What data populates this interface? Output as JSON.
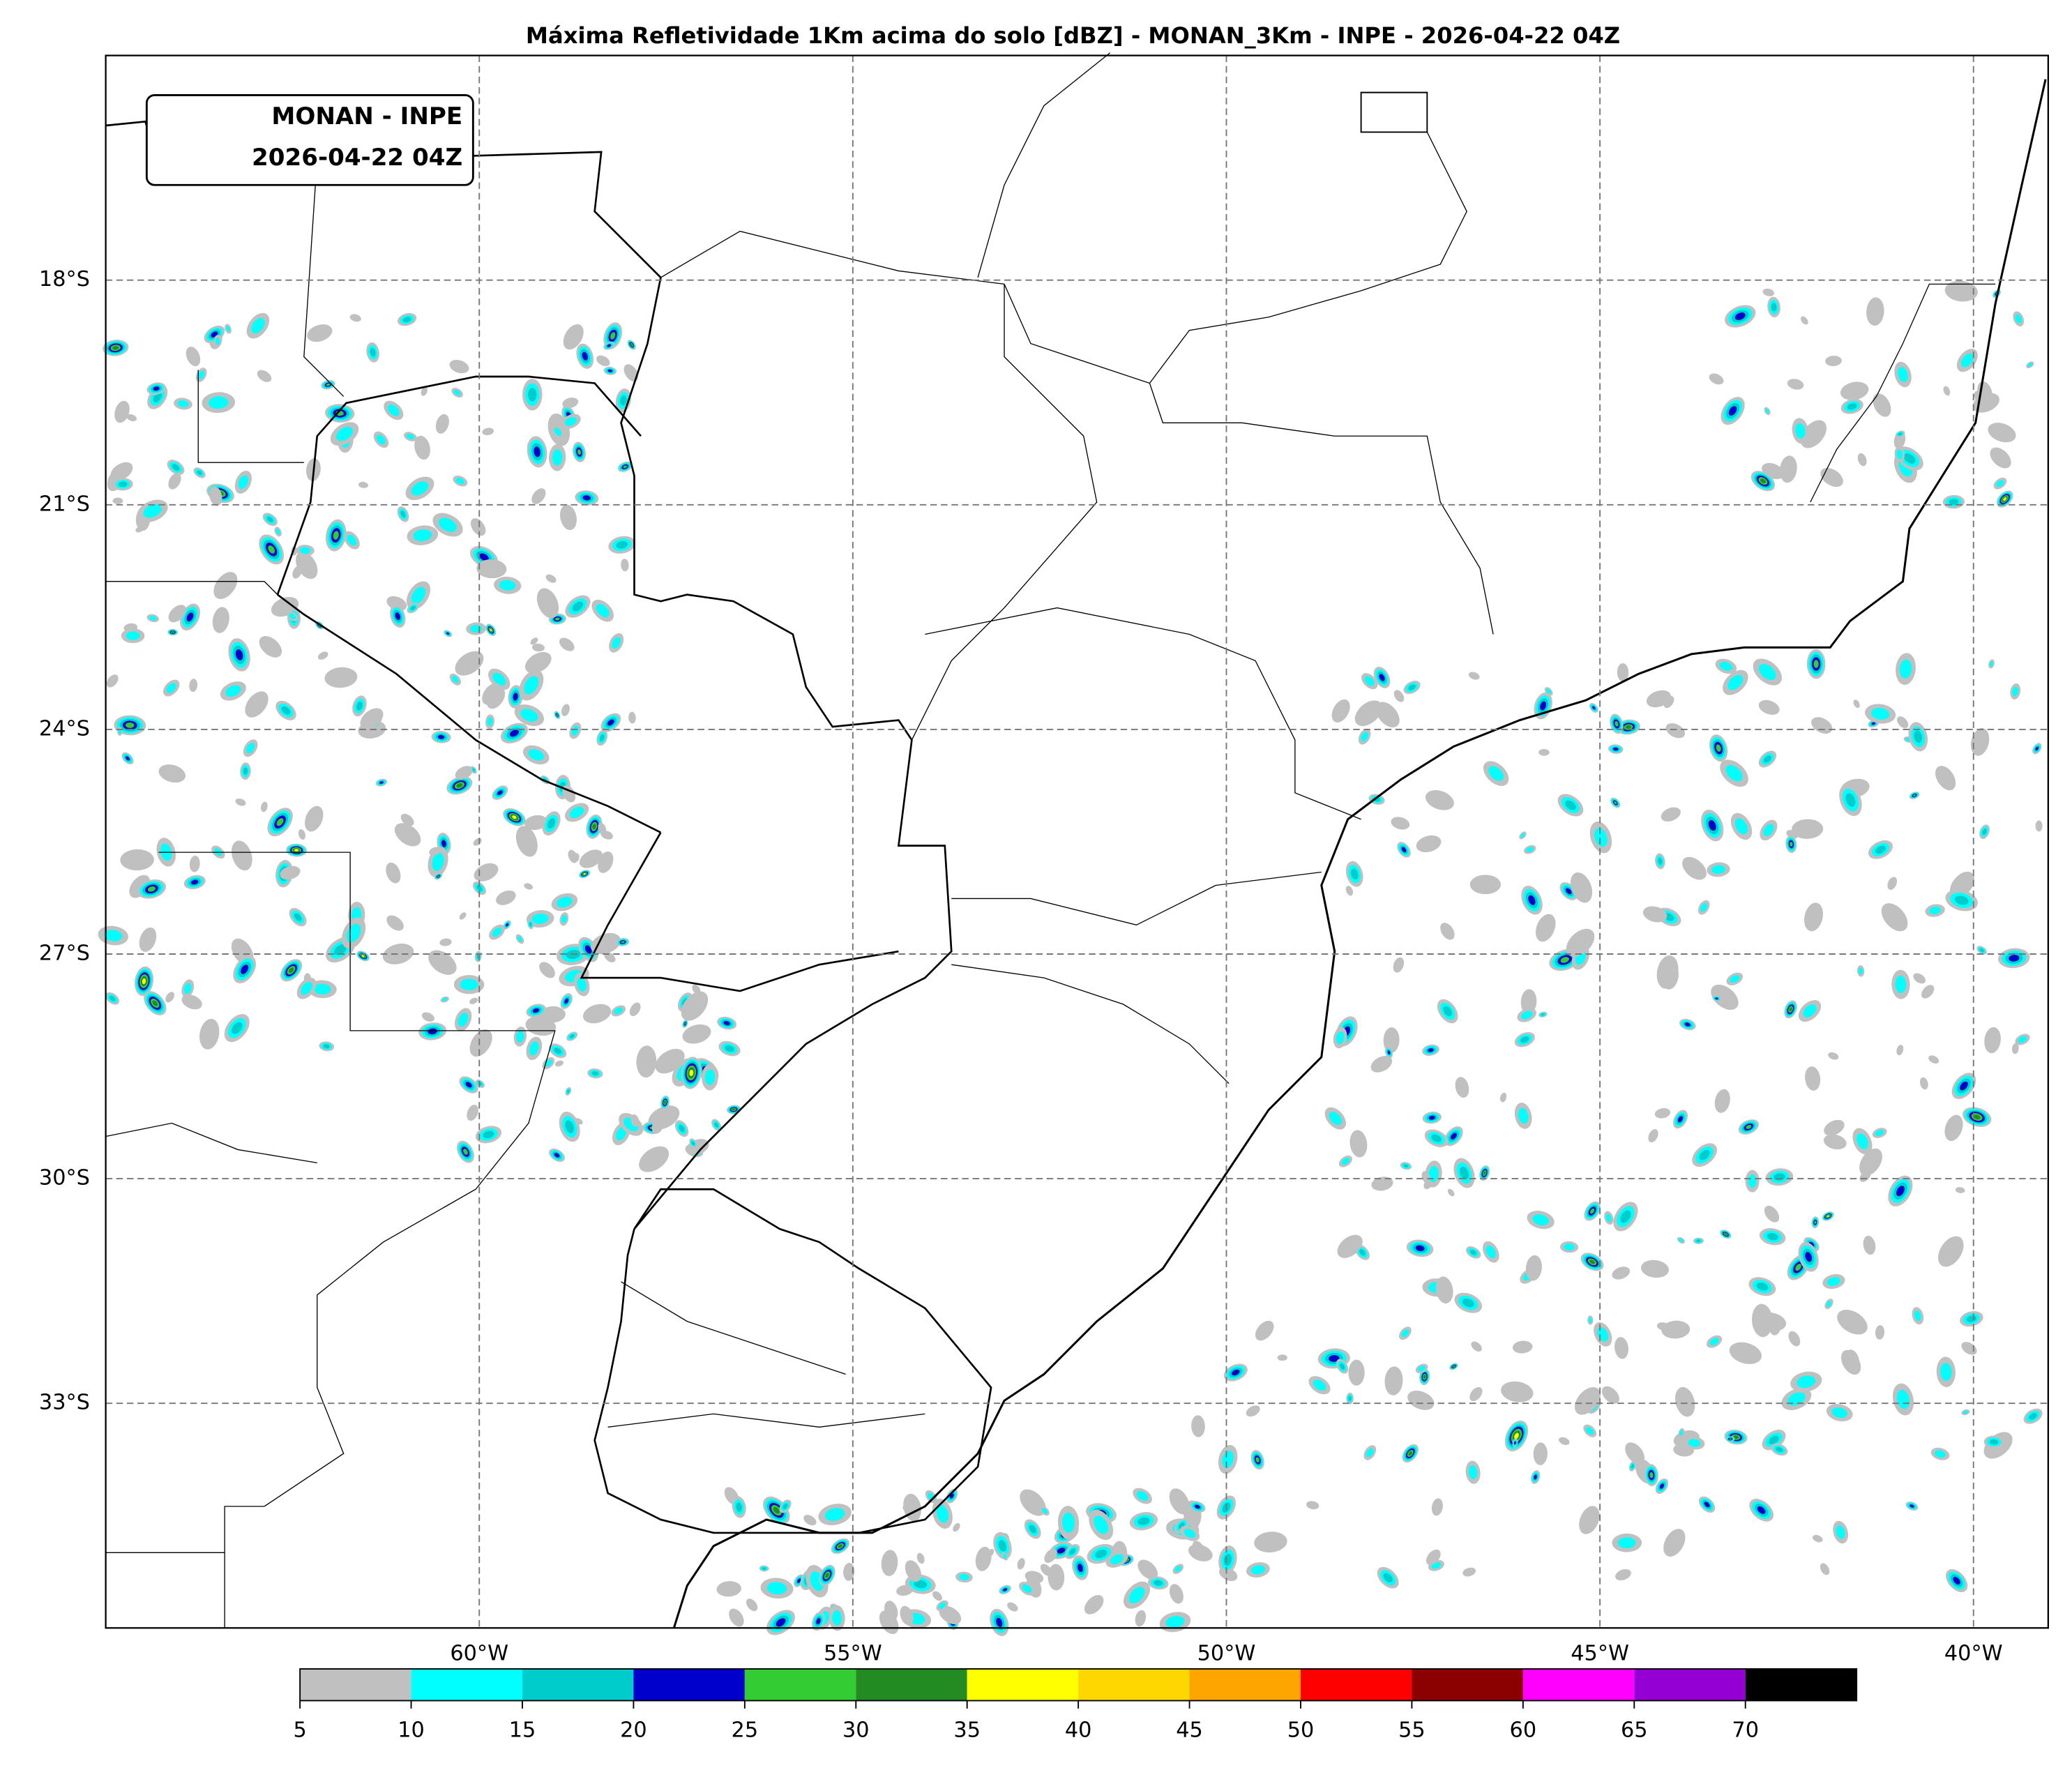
{
  "title": "Máxima Refletividade 1Km acima do solo [dBZ] - MONAN_3Km - INPE - 2026-04-22 04Z",
  "inset": [
    "MONAN - INPE",
    "2026-04-22 04Z"
  ],
  "map": {
    "xlim": [
      -65,
      -39
    ],
    "ylim": [
      -36,
      -15
    ],
    "xticks": [
      {
        "value": -60,
        "label": "60°W"
      },
      {
        "value": -55,
        "label": "55°W"
      },
      {
        "value": -50,
        "label": "50°W"
      },
      {
        "value": -45,
        "label": "45°W"
      },
      {
        "value": -40,
        "label": "40°W"
      }
    ],
    "yticks": [
      {
        "value": -18,
        "label": "18°S"
      },
      {
        "value": -21,
        "label": "21°S"
      },
      {
        "value": -24,
        "label": "24°S"
      },
      {
        "value": -27,
        "label": "27°S"
      },
      {
        "value": -30,
        "label": "30°S"
      },
      {
        "value": -33,
        "label": "33°S"
      }
    ]
  },
  "colorbar": {
    "lim": [
      5,
      75
    ],
    "ticks": [
      5,
      10,
      15,
      20,
      25,
      30,
      35,
      40,
      45,
      50,
      55,
      60,
      65,
      70
    ],
    "colors": [
      "#c0c0c0",
      "#00ffff",
      "#00cccc",
      "#0000cc",
      "#33cc33",
      "#228b22",
      "#ffff00",
      "#ffd700",
      "#ffa500",
      "#ff0000",
      "#8b0000",
      "#ff00ff",
      "#9400d3",
      "#000000"
    ]
  }
}
